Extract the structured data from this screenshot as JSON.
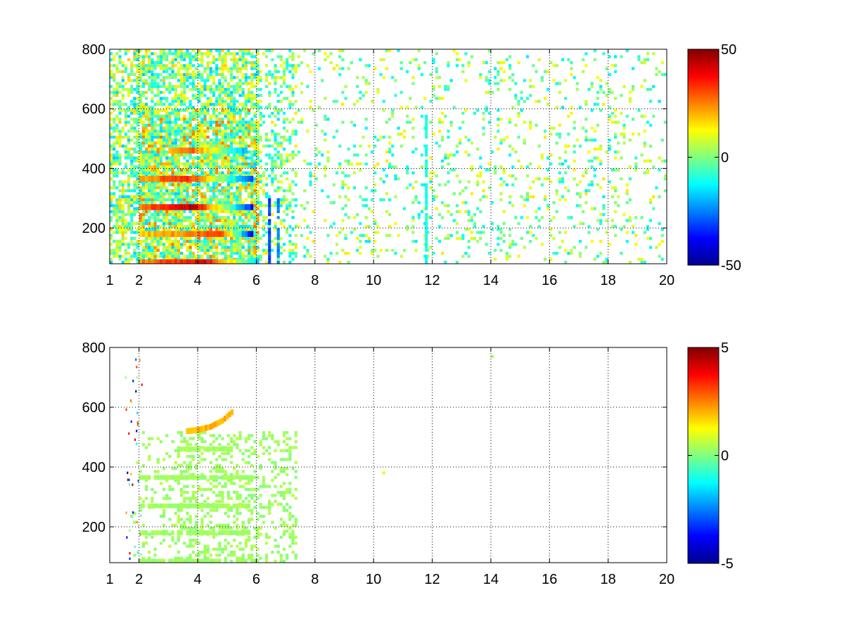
{
  "chart_data": [
    {
      "type": "heatmap",
      "title": "",
      "xlabel": "",
      "ylabel": "",
      "xlim": [
        1,
        20
      ],
      "ylim": [
        80,
        800
      ],
      "x_ticks": [
        1,
        2,
        4,
        6,
        8,
        10,
        12,
        14,
        16,
        18,
        20
      ],
      "x_tick_labels": [
        "1",
        "2",
        "4",
        "6",
        "8",
        "10",
        "12",
        "14",
        "16",
        "18",
        "20"
      ],
      "y_ticks": [
        200,
        400,
        600,
        800
      ],
      "y_tick_labels": [
        "200",
        "400",
        "600",
        "800"
      ],
      "grid": true,
      "colormap": "jet",
      "colorbar": {
        "min": -50,
        "max": 50,
        "ticks": [
          -50,
          0,
          50
        ],
        "tick_labels": [
          "-50",
          "0",
          "50"
        ]
      },
      "background": "#ffffff",
      "bands": [
        {
          "y": 270,
          "x_start": 2.0,
          "x_end": 5.8,
          "peak_x": 3.8,
          "peak_value": 45,
          "end_value": -35
        },
        {
          "y": 365,
          "x_start": 2.0,
          "x_end": 5.8,
          "peak_x": 3.6,
          "peak_value": 35,
          "end_value": -30
        },
        {
          "y": 460,
          "x_start": 3.0,
          "x_end": 5.6,
          "peak_x": 3.7,
          "peak_value": 30,
          "end_value": -20
        },
        {
          "y": 180,
          "x_start": 2.0,
          "x_end": 5.8,
          "peak_x": 4.8,
          "peak_value": 30,
          "end_value": -40
        },
        {
          "y": 85,
          "x_start": 2.0,
          "x_end": 6.0,
          "peak_x": 4.2,
          "peak_value": 40,
          "end_value": -15
        }
      ],
      "vertical_streaks": [
        {
          "x": 11.75,
          "y_start": 80,
          "y_end": 580,
          "value": -10
        },
        {
          "x": 6.4,
          "y_start": 80,
          "y_end": 300,
          "value": -30
        },
        {
          "x": 6.7,
          "y_start": 80,
          "y_end": 300,
          "value": -25
        }
      ],
      "scattered_x_range": [
        1,
        20
      ],
      "scattered_value_range": [
        -15,
        15
      ]
    },
    {
      "type": "heatmap",
      "title": "",
      "xlabel": "",
      "ylabel": "",
      "xlim": [
        1,
        20
      ],
      "ylim": [
        80,
        800
      ],
      "x_ticks": [
        1,
        2,
        4,
        6,
        8,
        10,
        12,
        14,
        16,
        18,
        20
      ],
      "x_tick_labels": [
        "1",
        "2",
        "4",
        "6",
        "8",
        "10",
        "12",
        "14",
        "16",
        "18",
        "20"
      ],
      "y_ticks": [
        200,
        400,
        600,
        800
      ],
      "y_tick_labels": [
        "200",
        "400",
        "600",
        "800"
      ],
      "grid": true,
      "colormap": "jet",
      "colorbar": {
        "min": -5,
        "max": 5,
        "ticks": [
          -5,
          0,
          5
        ],
        "tick_labels": [
          "-5",
          "0",
          "5"
        ]
      },
      "background": "#ffffff",
      "bands": [
        {
          "y": 85,
          "x_start": 2.0,
          "x_end": 6.0,
          "value": 0.3
        },
        {
          "y": 270,
          "x_start": 2.0,
          "x_end": 5.8,
          "value": 0.3
        },
        {
          "y": 365,
          "x_start": 2.0,
          "x_end": 5.8,
          "value": 0.3
        },
        {
          "y": 460,
          "x_start": 3.2,
          "x_end": 5.0,
          "value": 0.3
        },
        {
          "y": 180,
          "x_start": 2.0,
          "x_end": 5.8,
          "value": 0.3
        }
      ],
      "curve": {
        "x": [
          3.6,
          4.0,
          4.4,
          4.8,
          5.2
        ],
        "y": [
          520,
          525,
          535,
          555,
          590
        ],
        "value": 2.0
      },
      "isolated_points": [
        {
          "x": 10.3,
          "y": 380,
          "value": 1.0
        },
        {
          "x": 14.0,
          "y": 770,
          "value": 0.3
        }
      ]
    }
  ]
}
